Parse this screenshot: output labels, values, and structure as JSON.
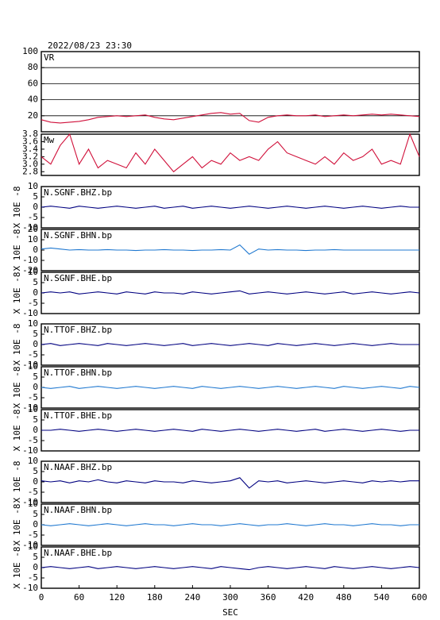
{
  "chart_data": [
    {
      "type": "line",
      "title": "2022/08/23 23:30",
      "label": "VR",
      "color": "#d0103a",
      "grid": true,
      "ylim": [
        0,
        100
      ],
      "yticks": [
        20,
        40,
        60,
        80,
        100
      ],
      "x": [
        0,
        15,
        30,
        45,
        60,
        75,
        90,
        105,
        120,
        135,
        150,
        165,
        180,
        195,
        210,
        225,
        240,
        255,
        270,
        285,
        300,
        315,
        330,
        345,
        360,
        375,
        390,
        405,
        420,
        435,
        450,
        465,
        480,
        495,
        510,
        525,
        540,
        555,
        570,
        585,
        600
      ],
      "values": [
        15,
        12,
        11,
        12,
        13,
        15,
        18,
        19,
        20,
        19,
        20,
        21,
        18,
        16,
        15,
        17,
        19,
        21,
        23,
        24,
        22,
        23,
        14,
        12,
        18,
        20,
        21,
        20,
        20,
        21,
        19,
        20,
        21,
        20,
        21,
        22,
        21,
        22,
        21,
        20,
        19
      ]
    },
    {
      "type": "line",
      "label": "Mw",
      "color": "#d0103a",
      "ylim": [
        2.7,
        3.8
      ],
      "yticks": [
        2.8,
        {
          "value": 3,
          "label": "3.0"
        },
        3.2,
        3.4,
        3.6,
        3.8
      ],
      "x": [
        0,
        15,
        30,
        45,
        60,
        75,
        90,
        105,
        120,
        135,
        150,
        165,
        180,
        195,
        210,
        225,
        240,
        255,
        270,
        285,
        300,
        315,
        330,
        345,
        360,
        375,
        390,
        405,
        420,
        435,
        450,
        465,
        480,
        495,
        510,
        525,
        540,
        555,
        570,
        585,
        600
      ],
      "values": [
        3.2,
        3.0,
        3.5,
        3.8,
        3.0,
        3.4,
        2.9,
        3.1,
        3.0,
        2.9,
        3.3,
        3.0,
        3.4,
        3.1,
        2.8,
        3.0,
        3.2,
        2.9,
        3.1,
        3.0,
        3.3,
        3.1,
        3.2,
        3.1,
        3.4,
        3.6,
        3.3,
        3.2,
        3.1,
        3.0,
        3.2,
        3.0,
        3.3,
        3.1,
        3.2,
        3.4,
        3.0,
        3.1,
        3.0,
        3.8,
        3.2
      ]
    },
    {
      "type": "line",
      "label": "N.SGNF.BHZ.bp",
      "ylabel": "X 10E -8",
      "color": "#000080",
      "ylim": [
        -10,
        10
      ],
      "yticks": [
        -10,
        -5,
        0,
        5,
        10
      ],
      "x": [
        0,
        15,
        30,
        45,
        60,
        75,
        90,
        105,
        120,
        135,
        150,
        165,
        180,
        195,
        210,
        225,
        240,
        255,
        270,
        285,
        300,
        315,
        330,
        345,
        360,
        375,
        390,
        405,
        420,
        435,
        450,
        465,
        480,
        495,
        510,
        525,
        540,
        555,
        570,
        585,
        600
      ],
      "values": [
        0,
        0.5,
        0,
        -0.5,
        0.5,
        0,
        -0.5,
        0,
        0.5,
        0,
        -0.5,
        0,
        0.5,
        -0.5,
        0,
        0.5,
        -0.5,
        0,
        0.5,
        0,
        -0.5,
        0,
        0.5,
        0,
        -0.5,
        0,
        0.5,
        0,
        -0.5,
        0,
        0.5,
        0,
        -0.5,
        0,
        0.5,
        0,
        -0.5,
        0,
        0.5,
        0,
        0
      ]
    },
    {
      "type": "line",
      "label": "N.SGNF.BHN.bp",
      "ylabel": "X 10E -8",
      "color": "#1f78d0",
      "ylim": [
        -20,
        20
      ],
      "yticks": [
        -20,
        -10,
        0,
        10,
        20
      ],
      "x": [
        0,
        15,
        30,
        45,
        60,
        75,
        90,
        105,
        120,
        135,
        150,
        165,
        180,
        195,
        210,
        225,
        240,
        255,
        270,
        285,
        300,
        315,
        330,
        345,
        360,
        375,
        390,
        405,
        420,
        435,
        450,
        465,
        480,
        495,
        510,
        525,
        540,
        555,
        570,
        585,
        600
      ],
      "values": [
        1,
        2,
        1,
        0,
        0.5,
        0,
        0,
        0.5,
        0,
        0,
        -0.5,
        0,
        0,
        0.5,
        0,
        0,
        -0.5,
        0,
        0,
        0.5,
        0,
        5,
        -4,
        1,
        0,
        0.5,
        0,
        0,
        -0.5,
        0,
        0,
        0.5,
        0,
        0,
        0,
        0,
        0,
        0,
        0,
        0,
        0
      ]
    },
    {
      "type": "line",
      "label": "N.SGNF.BHE.bp",
      "ylabel": "X 10E -8",
      "color": "#000080",
      "ylim": [
        -10,
        10
      ],
      "yticks": [
        -10,
        -5,
        0,
        5,
        10
      ],
      "x": [
        0,
        15,
        30,
        45,
        60,
        75,
        90,
        105,
        120,
        135,
        150,
        165,
        180,
        195,
        210,
        225,
        240,
        255,
        270,
        285,
        300,
        315,
        330,
        345,
        360,
        375,
        390,
        405,
        420,
        435,
        450,
        465,
        480,
        495,
        510,
        525,
        540,
        555,
        570,
        585,
        600
      ],
      "values": [
        0,
        0.5,
        0,
        0.5,
        -0.5,
        0,
        0.5,
        0,
        -0.5,
        0.5,
        0,
        -0.5,
        0.5,
        0,
        0,
        -0.5,
        0.5,
        0,
        -0.5,
        0,
        0.5,
        1,
        -0.5,
        0,
        0.5,
        0,
        -0.5,
        0,
        0.5,
        0,
        -0.5,
        0,
        0.5,
        -0.5,
        0,
        0.5,
        0,
        -0.5,
        0,
        0.5,
        0
      ]
    },
    {
      "type": "line",
      "label": "N.TTOF.BHZ.bp",
      "ylabel": "X 10E -8",
      "color": "#000080",
      "ylim": [
        -10,
        10
      ],
      "yticks": [
        -10,
        -5,
        0,
        5,
        10
      ],
      "x": [
        0,
        15,
        30,
        45,
        60,
        75,
        90,
        105,
        120,
        135,
        150,
        165,
        180,
        195,
        210,
        225,
        240,
        255,
        270,
        285,
        300,
        315,
        330,
        345,
        360,
        375,
        390,
        405,
        420,
        435,
        450,
        465,
        480,
        495,
        510,
        525,
        540,
        555,
        570,
        585,
        600
      ],
      "values": [
        0,
        0.5,
        -0.5,
        0,
        0.5,
        0,
        -0.5,
        0.5,
        0,
        -0.5,
        0,
        0.5,
        0,
        -0.5,
        0,
        0.5,
        -0.5,
        0,
        0.5,
        0,
        -0.5,
        0,
        0.5,
        0,
        -0.5,
        0.5,
        0,
        -0.5,
        0,
        0.5,
        0,
        -0.5,
        0,
        0.5,
        0,
        -0.5,
        0,
        0.5,
        0,
        0,
        0
      ]
    },
    {
      "type": "line",
      "label": "N.TTOF.BHN.bp",
      "ylabel": "X 10E -8",
      "color": "#1f78d0",
      "ylim": [
        -10,
        10
      ],
      "yticks": [
        -10,
        -5,
        0,
        5,
        10
      ],
      "x": [
        0,
        15,
        30,
        45,
        60,
        75,
        90,
        105,
        120,
        135,
        150,
        165,
        180,
        195,
        210,
        225,
        240,
        255,
        270,
        285,
        300,
        315,
        330,
        345,
        360,
        375,
        390,
        405,
        420,
        435,
        450,
        465,
        480,
        495,
        510,
        525,
        540,
        555,
        570,
        585,
        600
      ],
      "values": [
        0,
        -0.5,
        0,
        0.5,
        -0.5,
        0,
        0.5,
        0,
        -0.5,
        0,
        0.5,
        0,
        -0.5,
        0,
        0.5,
        0,
        -0.5,
        0.5,
        0,
        -0.5,
        0,
        0.5,
        0,
        -0.5,
        0,
        0.5,
        0,
        -0.5,
        0,
        0.5,
        0,
        -0.5,
        0.5,
        0,
        -0.5,
        0,
        0.5,
        0,
        -0.5,
        0.5,
        0
      ]
    },
    {
      "type": "line",
      "label": "N.TTOF.BHE.bp",
      "ylabel": "X 10E -8",
      "color": "#000080",
      "ylim": [
        -10,
        10
      ],
      "yticks": [
        -10,
        -5,
        0,
        5,
        10
      ],
      "x": [
        0,
        15,
        30,
        45,
        60,
        75,
        90,
        105,
        120,
        135,
        150,
        165,
        180,
        195,
        210,
        225,
        240,
        255,
        270,
        285,
        300,
        315,
        330,
        345,
        360,
        375,
        390,
        405,
        420,
        435,
        450,
        465,
        480,
        495,
        510,
        525,
        540,
        555,
        570,
        585,
        600
      ],
      "values": [
        0,
        0,
        0.5,
        0,
        -0.5,
        0,
        0.5,
        0,
        -0.5,
        0,
        0.5,
        0,
        -0.5,
        0,
        0.5,
        0,
        -0.5,
        0.5,
        0,
        -0.5,
        0,
        0.5,
        0,
        -0.5,
        0,
        0.5,
        0,
        -0.5,
        0,
        0.5,
        -0.5,
        0,
        0.5,
        0,
        -0.5,
        0,
        0.5,
        0,
        -0.5,
        0,
        0
      ]
    },
    {
      "type": "line",
      "label": "N.NAAF.BHZ.bp",
      "ylabel": "X 10E -8",
      "color": "#000080",
      "ylim": [
        -10,
        10
      ],
      "yticks": [
        -10,
        -5,
        0,
        5,
        10
      ],
      "x": [
        0,
        15,
        30,
        45,
        60,
        75,
        90,
        105,
        120,
        135,
        150,
        165,
        180,
        195,
        210,
        225,
        240,
        255,
        270,
        285,
        300,
        315,
        330,
        345,
        360,
        375,
        390,
        405,
        420,
        435,
        450,
        465,
        480,
        495,
        510,
        525,
        540,
        555,
        570,
        585,
        600
      ],
      "values": [
        0.5,
        0,
        0.5,
        -0.5,
        0.5,
        0,
        1,
        0,
        -0.5,
        0.5,
        0,
        -0.5,
        0.5,
        0,
        0,
        -0.5,
        0.5,
        0,
        -0.5,
        0,
        0.5,
        2,
        -3,
        0.5,
        0,
        0.5,
        -0.5,
        0,
        0.5,
        0,
        -0.5,
        0,
        0.5,
        0,
        -0.5,
        0.5,
        0,
        0.5,
        0,
        0.5,
        0.5
      ]
    },
    {
      "type": "line",
      "label": "N.NAAF.BHN.bp",
      "ylabel": "X 10E -8",
      "color": "#1f78d0",
      "ylim": [
        -10,
        10
      ],
      "yticks": [
        -10,
        -5,
        0,
        5,
        10
      ],
      "x": [
        0,
        15,
        30,
        45,
        60,
        75,
        90,
        105,
        120,
        135,
        150,
        165,
        180,
        195,
        210,
        225,
        240,
        255,
        270,
        285,
        300,
        315,
        330,
        345,
        360,
        375,
        390,
        405,
        420,
        435,
        450,
        465,
        480,
        495,
        510,
        525,
        540,
        555,
        570,
        585,
        600
      ],
      "values": [
        0,
        -0.5,
        0,
        0.5,
        0,
        -0.5,
        0,
        0.5,
        0,
        -0.5,
        0,
        0.5,
        0,
        0,
        -0.5,
        0,
        0.5,
        0,
        0,
        -0.5,
        0,
        0.5,
        0,
        -0.5,
        0,
        0,
        0.5,
        0,
        -0.5,
        0,
        0.5,
        0,
        0,
        -0.5,
        0,
        0.5,
        0,
        0,
        -0.5,
        0,
        0
      ]
    },
    {
      "type": "line",
      "label": "N.NAAF.BHE.bp",
      "ylabel": "X 10E -8",
      "color": "#000080",
      "ylim": [
        -10,
        10
      ],
      "yticks": [
        -10,
        -5,
        0,
        5,
        10
      ],
      "xlim": [
        0,
        600
      ],
      "xticks": [
        0,
        60,
        120,
        180,
        240,
        300,
        360,
        420,
        480,
        540,
        600
      ],
      "xlabel": "SEC",
      "x": [
        0,
        15,
        30,
        45,
        60,
        75,
        90,
        105,
        120,
        135,
        150,
        165,
        180,
        195,
        210,
        225,
        240,
        255,
        270,
        285,
        300,
        315,
        330,
        345,
        360,
        375,
        390,
        405,
        420,
        435,
        450,
        465,
        480,
        495,
        510,
        525,
        540,
        555,
        570,
        585,
        600
      ],
      "values": [
        0,
        0.5,
        0,
        -0.5,
        0,
        0.5,
        -0.5,
        0,
        0.5,
        0,
        -0.5,
        0,
        0.5,
        0,
        -0.5,
        0,
        0.5,
        0,
        -0.5,
        0.5,
        0,
        -0.5,
        -1,
        0,
        0.5,
        0,
        -0.5,
        0,
        0.5,
        0,
        -0.5,
        0.5,
        0,
        -0.5,
        0,
        0.5,
        0,
        -0.5,
        0,
        0.5,
        0
      ]
    }
  ]
}
